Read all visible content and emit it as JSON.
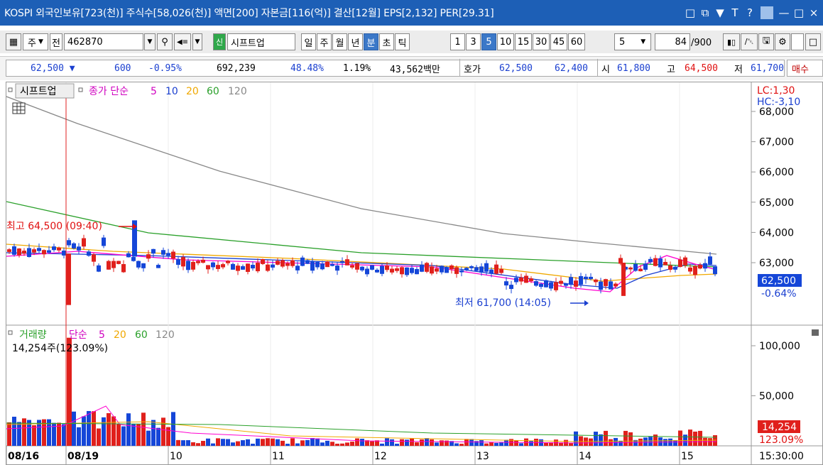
{
  "titlebar": {
    "title": "KOSPI 외국인보유[723(천)] 주식수[58,026(천)] 액면[200] 자본금[116(억)] 결산[12월] EPS[2,132] PER[29.31]",
    "icons": [
      "window-icon",
      "restore-icon",
      "pin-icon",
      "font-icon",
      "help-icon",
      "minimize-icon",
      "maximize-icon",
      "close-icon"
    ]
  },
  "toolbar": {
    "type_label": "주",
    "all_label": "전",
    "code": "462870",
    "signal_label": "신",
    "stock_name": "시프트업",
    "periods": [
      "일",
      "주",
      "월",
      "년",
      "분",
      "초",
      "틱"
    ],
    "selected_period": "분",
    "intervals": [
      "1",
      "3",
      "5",
      "10",
      "15",
      "30",
      "45",
      "60"
    ],
    "selected_interval": "5",
    "interval_value": "5",
    "count": "84",
    "count_total": "/900"
  },
  "quote": {
    "price": "62,500",
    "change": "600",
    "change_pct": "-0.95%",
    "volume": "692,239",
    "vol_ratio": "48.48%",
    "turnover": "1.19%",
    "trade_value": "43,562백만",
    "hoga_label": "호가",
    "ask": "62,500",
    "bid": "62,400",
    "open_label": "시",
    "open": "61,800",
    "high_label": "고",
    "high": "64,500",
    "low_label": "저",
    "low": "61,700",
    "buy_label": "매수"
  },
  "legend": {
    "stock_name": "시프트업",
    "close_label": "종가 단순",
    "ma": [
      "5",
      "10",
      "20",
      "60",
      "120"
    ],
    "volume_label": "거래량",
    "volume_ma_label": "단순",
    "volume_ma": [
      "5",
      "20",
      "60",
      "120"
    ],
    "volume_current": "14,254주(123.09%)"
  },
  "annotations": {
    "high": "최고 64,500 (09:40)",
    "low": "최저 61,700 (14:05)",
    "lc": "LC:1,30",
    "hc": "HC:-3,10",
    "price_tag": "62,500",
    "price_pct": "-0.64%",
    "vol_tag": "14,254",
    "vol_pct": "123.09%",
    "time": "15:30:00"
  },
  "colors": {
    "up": "#e0201c",
    "down": "#1546d8",
    "ma5": "#ff00d0",
    "ma10": "#1a3fd0",
    "ma20": "#f0a800",
    "ma60": "#2aa02a",
    "ma120": "#888888"
  },
  "chart_data": {
    "type": "candlestick",
    "price_axis": [
      68000,
      67000,
      66000,
      65000,
      64000,
      63000
    ],
    "volume_axis": [
      100000,
      50000
    ],
    "x_labels": [
      "08/16",
      "08/19",
      "10",
      "11",
      "12",
      "13",
      "14",
      "15"
    ],
    "last_price": 62500,
    "day_high": 64500,
    "day_low": 61700
  }
}
